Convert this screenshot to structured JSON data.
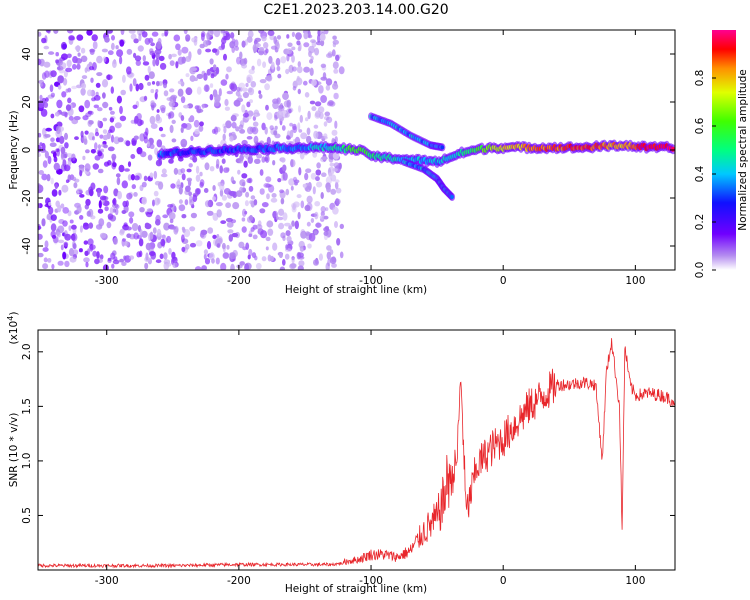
{
  "title": "C2E1.2023.203.14.00.G20",
  "chart_data": [
    {
      "type": "heatmap",
      "xlabel": "Height of straight line (km)",
      "ylabel": "Frequency (Hz)",
      "xlim": [
        -352,
        130
      ],
      "ylim": [
        -50,
        50
      ],
      "x_ticks": [
        "-300",
        "-200",
        "-100",
        "0",
        "100"
      ],
      "y_ticks": [
        "40",
        "20",
        "0",
        "-20",
        "-40"
      ],
      "colorbar": {
        "label": "Normalized spectral amplitude",
        "range": [
          0,
          1
        ],
        "ticks": [
          "0.0",
          "0.2",
          "0.4",
          "0.6",
          "0.8"
        ]
      },
      "noise_region_x": [
        -352,
        -122
      ],
      "ridge": [
        {
          "x": -260,
          "y": -2,
          "amp": 0.35
        },
        {
          "x": -245,
          "y": -1,
          "amp": 0.3
        },
        {
          "x": -215,
          "y": 0,
          "amp": 0.3
        },
        {
          "x": -160,
          "y": 1,
          "amp": 0.35
        },
        {
          "x": -130,
          "y": 1,
          "amp": 0.45
        },
        {
          "x": -110,
          "y": 0,
          "amp": 0.6
        },
        {
          "x": -95,
          "y": -3,
          "amp": 0.5
        },
        {
          "x": -70,
          "y": -4,
          "amp": 0.4
        },
        {
          "x": -50,
          "y": -5,
          "amp": 0.4
        },
        {
          "x": -40,
          "y": -3,
          "amp": 0.45
        },
        {
          "x": -30,
          "y": -1,
          "amp": 0.5
        },
        {
          "x": -10,
          "y": 1,
          "amp": 0.65
        },
        {
          "x": 0,
          "y": 1,
          "amp": 0.75
        },
        {
          "x": 30,
          "y": 1,
          "amp": 0.85
        },
        {
          "x": 60,
          "y": 1,
          "amp": 0.9
        },
        {
          "x": 90,
          "y": 2,
          "amp": 0.8
        },
        {
          "x": 110,
          "y": 1,
          "amp": 0.95
        },
        {
          "x": 130,
          "y": 1,
          "amp": 0.95
        }
      ],
      "branches": [
        {
          "points": [
            [
              -100,
              14
            ],
            [
              -85,
              11
            ],
            [
              -70,
              6
            ],
            [
              -55,
              2
            ],
            [
              -45,
              1
            ]
          ]
        },
        {
          "points": [
            [
              -75,
              -5
            ],
            [
              -60,
              -8
            ],
            [
              -50,
              -12
            ],
            [
              -45,
              -16
            ],
            [
              -38,
              -20
            ]
          ]
        }
      ]
    },
    {
      "type": "line",
      "xlabel": "Height of straight line (km)",
      "ylabel": "SNR (10 * v/v)",
      "multiplier": "(x10",
      "multiplier_exp": "4",
      "xlim": [
        -352,
        130
      ],
      "ylim": [
        0,
        2.2
      ],
      "x_ticks": [
        "-300",
        "-200",
        "-100",
        "0",
        "100"
      ],
      "y_ticks": [
        "0.5",
        "1.0",
        "1.5",
        "2.0"
      ],
      "series": [
        {
          "color": "#e8262b",
          "points": [
            [
              -352,
              0.04
            ],
            [
              -300,
              0.04
            ],
            [
              -250,
              0.04
            ],
            [
              -200,
              0.05
            ],
            [
              -160,
              0.05
            ],
            [
              -130,
              0.05
            ],
            [
              -110,
              0.08
            ],
            [
              -100,
              0.12
            ],
            [
              -90,
              0.12
            ],
            [
              -80,
              0.1
            ],
            [
              -70,
              0.15
            ],
            [
              -60,
              0.3
            ],
            [
              -50,
              0.4
            ],
            [
              -45,
              0.55
            ],
            [
              -40,
              0.8
            ],
            [
              -35,
              1.0
            ],
            [
              -32,
              1.78
            ],
            [
              -28,
              0.5
            ],
            [
              -20,
              0.95
            ],
            [
              -10,
              1.1
            ],
            [
              0,
              1.2
            ],
            [
              10,
              1.35
            ],
            [
              20,
              1.5
            ],
            [
              30,
              1.6
            ],
            [
              40,
              1.7
            ],
            [
              50,
              1.7
            ],
            [
              60,
              1.72
            ],
            [
              70,
              1.7
            ],
            [
              75,
              1.0
            ],
            [
              78,
              1.8
            ],
            [
              82,
              2.1
            ],
            [
              88,
              1.5
            ],
            [
              90,
              0.35
            ],
            [
              92,
              2.05
            ],
            [
              96,
              1.7
            ],
            [
              100,
              1.6
            ],
            [
              110,
              1.62
            ],
            [
              120,
              1.6
            ],
            [
              130,
              1.55
            ]
          ]
        }
      ]
    }
  ]
}
